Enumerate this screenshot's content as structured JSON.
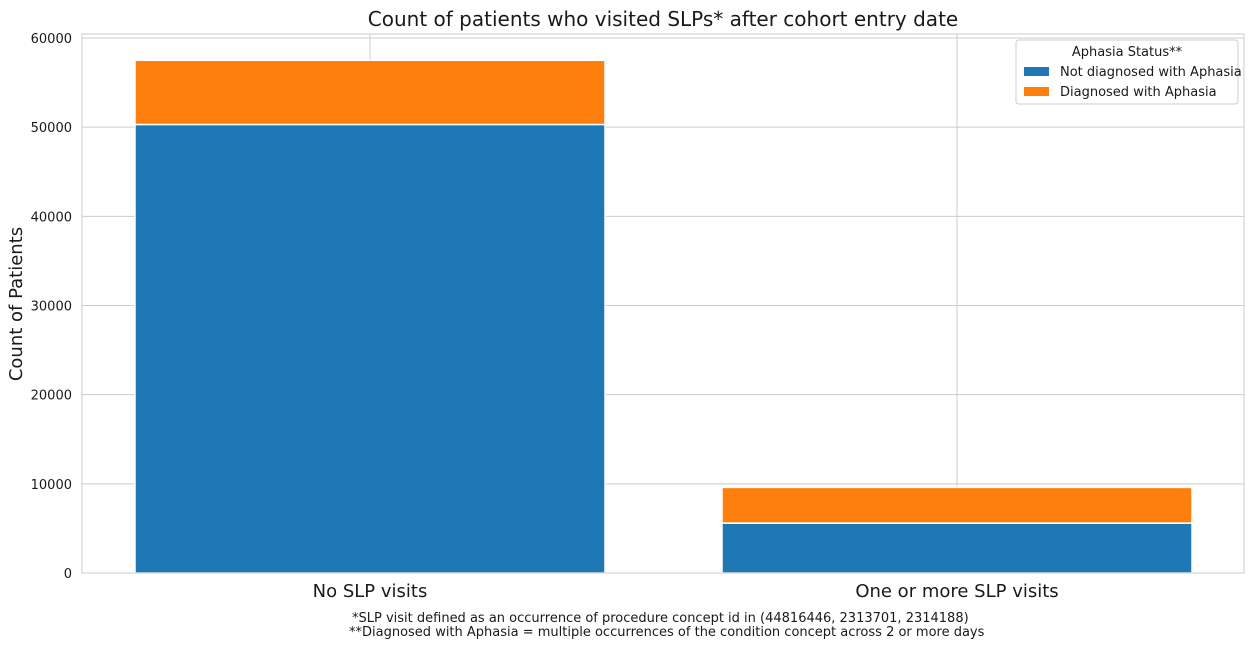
{
  "chart_data": {
    "type": "bar",
    "stacked": true,
    "title": "Count of patients who visited SLPs* after cohort entry date",
    "xlabel": "",
    "ylabel": "Count of Patients",
    "categories": [
      "No SLP visits",
      "One or more SLP visits"
    ],
    "series": [
      {
        "name": "Not diagnosed with Aphasia",
        "color": "#1f77b4",
        "values": [
          50300,
          5600
        ]
      },
      {
        "name": "Diagnosed with Aphasia",
        "color": "#ff7f0e",
        "values": [
          7200,
          4000
        ]
      }
    ],
    "ylim": [
      0,
      60000
    ],
    "yticks": [
      0,
      10000,
      20000,
      30000,
      40000,
      50000,
      60000
    ],
    "grid": true,
    "legend": {
      "title": "Aphasia Status**",
      "position": "top-right"
    },
    "footnotes": [
      "*SLP visit defined as an occurrence of procedure concept id in (44816446, 2313701, 2314188)",
      "**Diagnosed with Aphasia = multiple occurrences of the condition concept across 2 or more days"
    ]
  }
}
